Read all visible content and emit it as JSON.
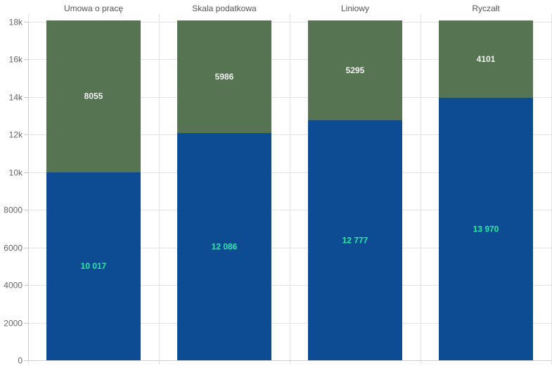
{
  "chart_data": {
    "type": "bar",
    "stacked": true,
    "categories": [
      "Umowa o pracę",
      "Skala podatkowa",
      "Liniowy",
      "Ryczałt"
    ],
    "series": [
      {
        "values": [
          10017,
          12086,
          12777,
          13970
        ],
        "labels": [
          "10 017",
          "12 086",
          "12 777",
          "13 970"
        ],
        "color": "#0d4c92",
        "label_color": "#2ee6a8"
      },
      {
        "values": [
          8055,
          5986,
          5295,
          4101
        ],
        "labels": [
          "8055",
          "5986",
          "5295",
          "4101"
        ],
        "color": "#567352",
        "label_color": "#f2f2f2"
      }
    ],
    "ylim": [
      0,
      18000
    ],
    "yticks": [
      0,
      2000,
      4000,
      6000,
      8000,
      10000,
      12000,
      14000,
      16000,
      18000
    ],
    "ytick_labels": [
      "0",
      "2000",
      "4000",
      "6000",
      "8000",
      "10k",
      "12k",
      "14k",
      "16k",
      "18k"
    ],
    "category_axis_position": "top",
    "grid": true,
    "legend": "none"
  }
}
